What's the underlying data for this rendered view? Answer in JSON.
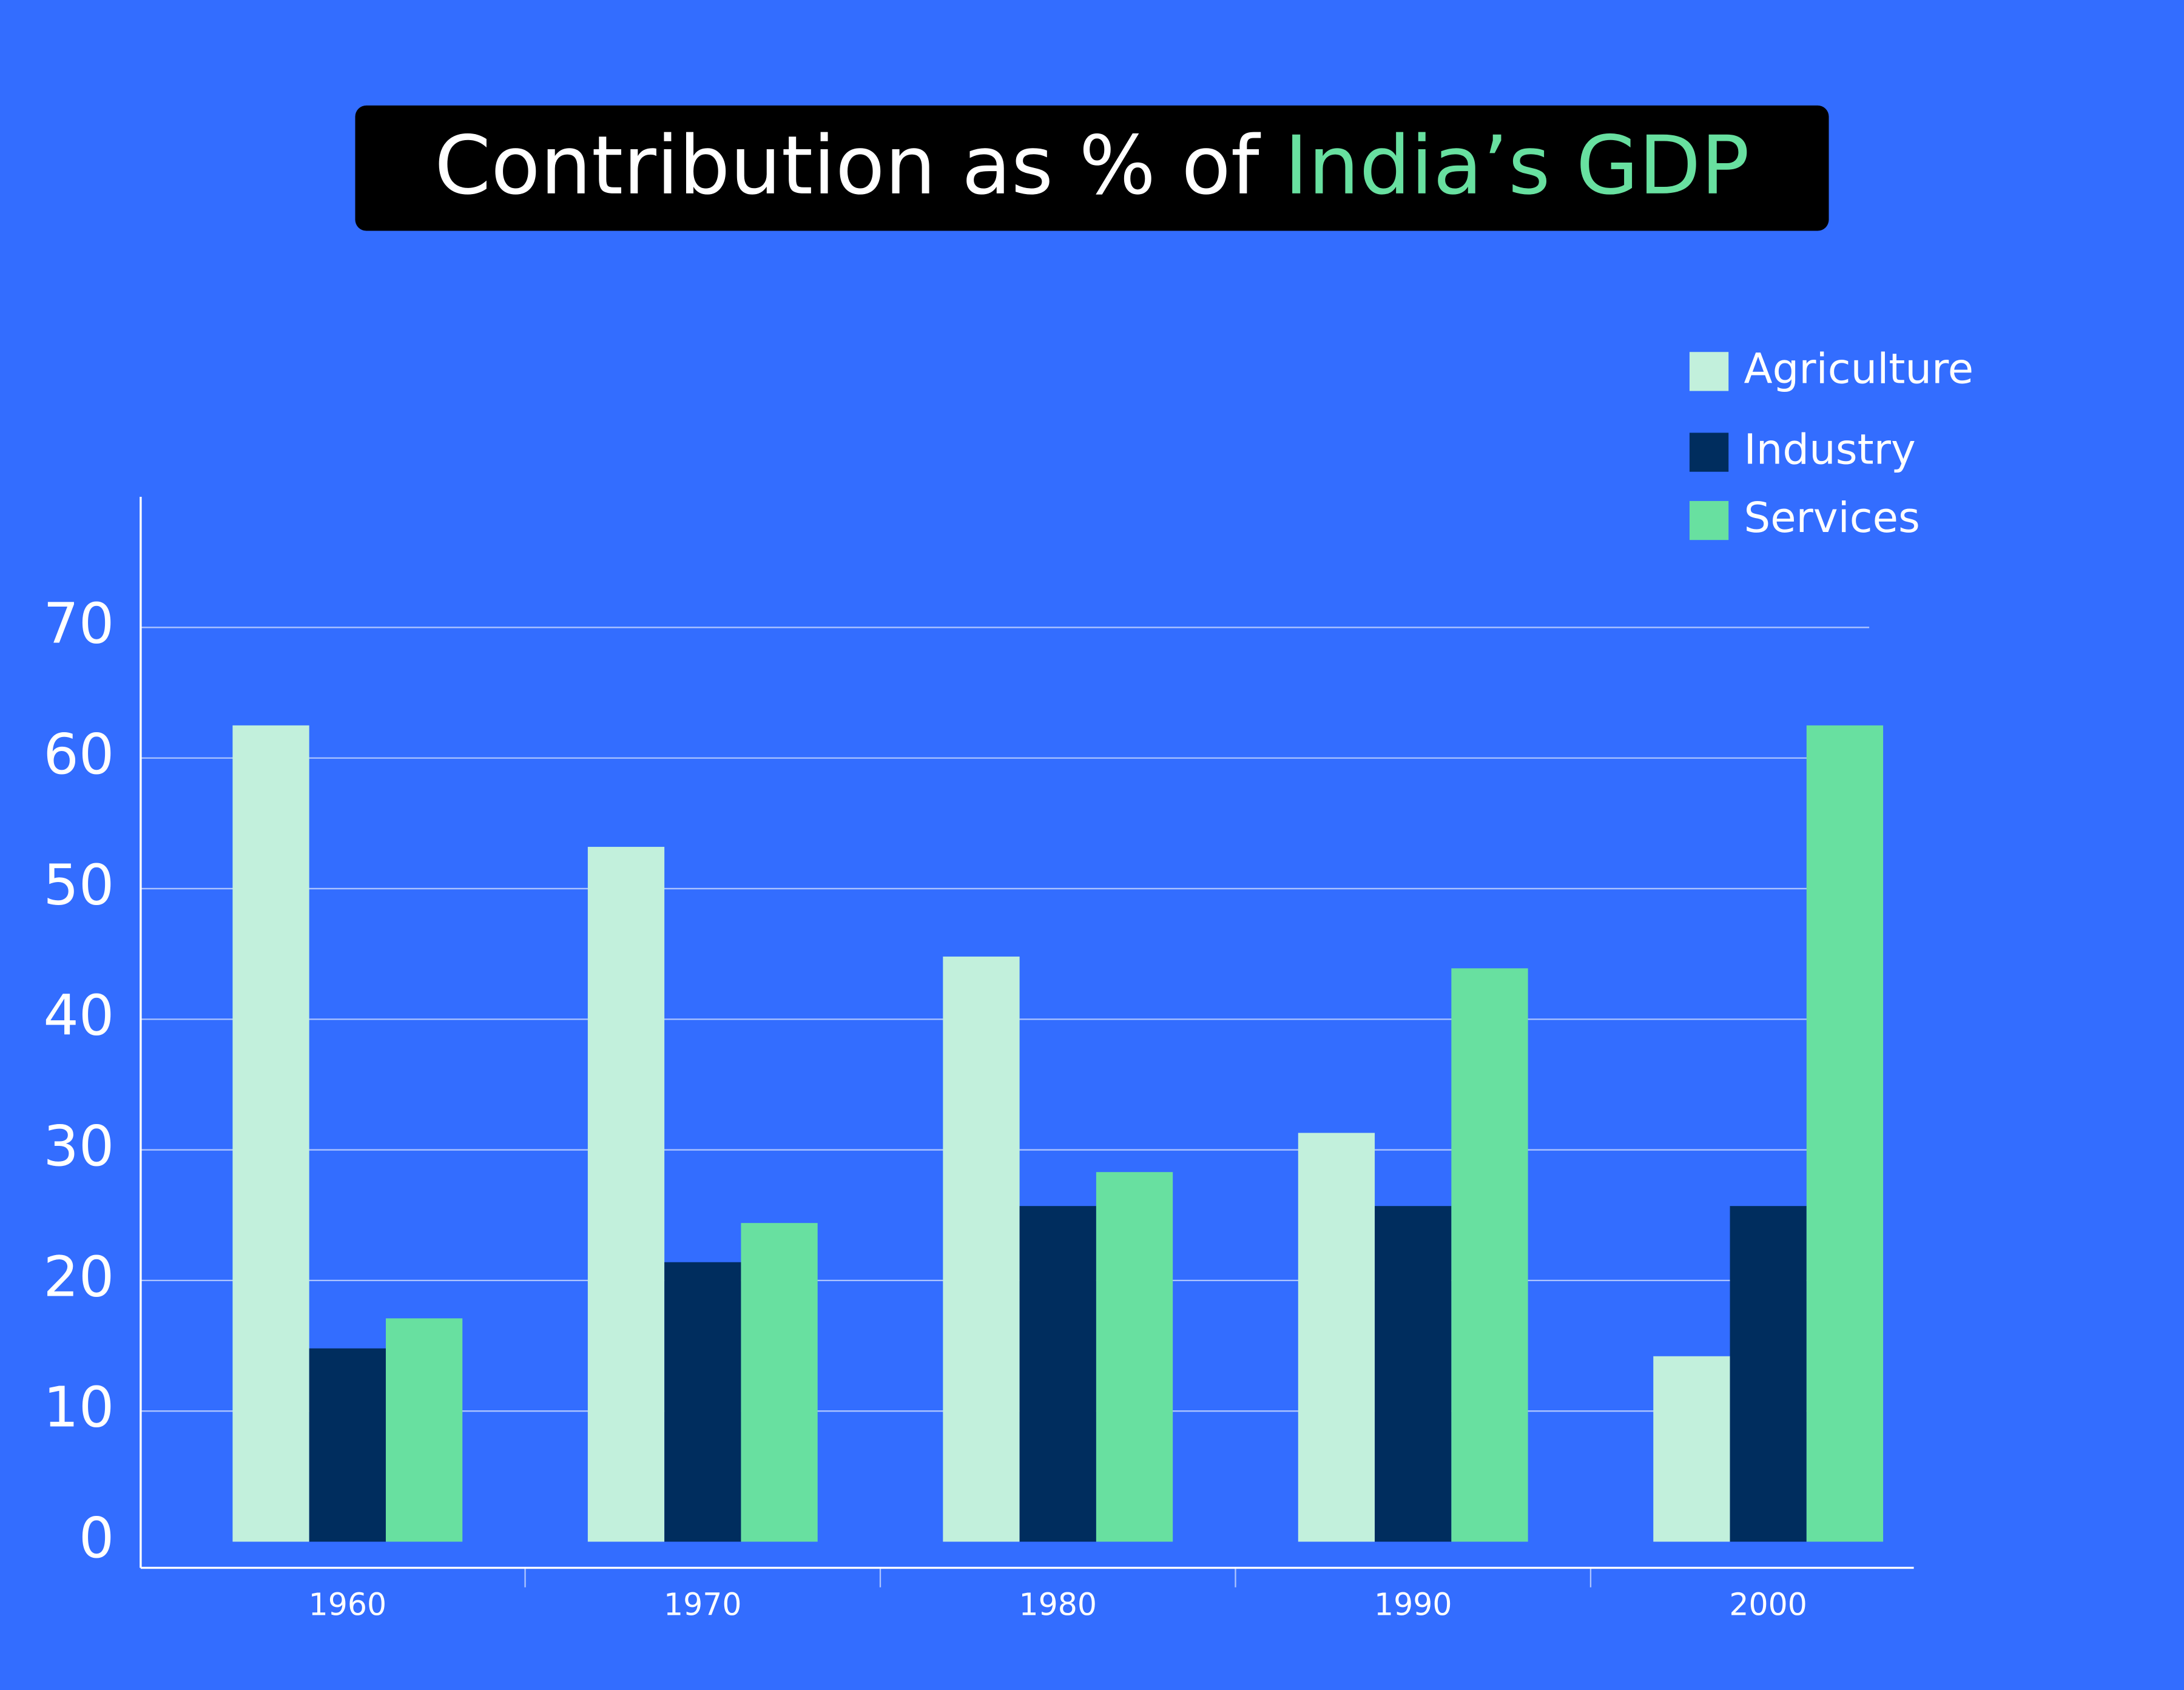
{
  "chart_data": {
    "type": "bar",
    "title": [
      "Contribution as % of",
      "India’s GDP"
    ],
    "categories": [
      "1960",
      "1970",
      "1980",
      "1990",
      "2000"
    ],
    "series": [
      {
        "name": "Agriculture",
        "color": "#c2f0dc",
        "values": [
          62.5,
          53.2,
          44.8,
          31.3,
          14.2
        ]
      },
      {
        "name": "Industry",
        "color": "#002d5e",
        "values": [
          14.8,
          21.4,
          25.7,
          25.7,
          25.7
        ]
      },
      {
        "name": "Services",
        "color": "#68e0a0",
        "values": [
          17.1,
          24.4,
          28.3,
          43.9,
          62.5
        ]
      }
    ],
    "ylim": [
      -2,
      80
    ],
    "yticks": [
      0,
      10,
      20,
      30,
      40,
      50,
      60,
      70
    ],
    "grid": true,
    "legend": "top-right"
  }
}
